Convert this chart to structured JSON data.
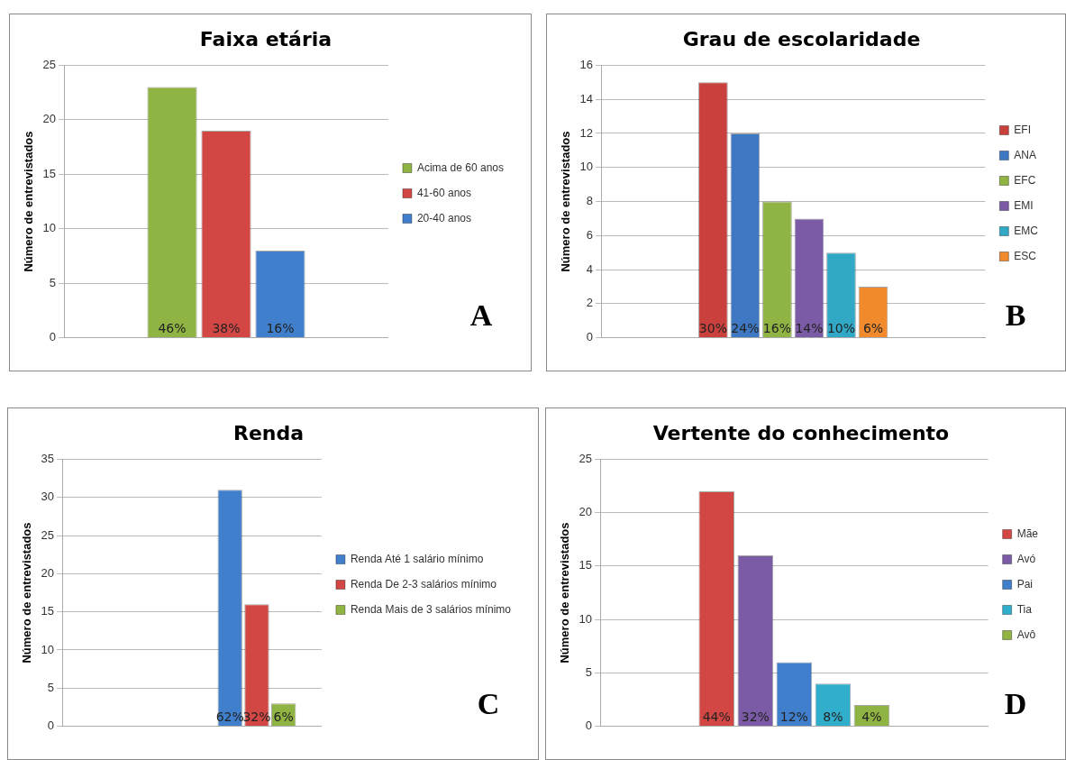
{
  "chart_data": [
    {
      "type": "bar",
      "title": "Faixa etária",
      "ylabel": "Número de entrevistados",
      "categories": [
        null
      ],
      "series": [
        {
          "name": "Acima de 60 anos",
          "color": "#8fb443",
          "values": [
            23
          ]
        },
        {
          "name": "41-60 anos",
          "color": "#d24744",
          "values": [
            19
          ]
        },
        {
          "name": "20-40 anos",
          "color": "#3f7fcc",
          "values": [
            8
          ]
        }
      ],
      "ylim": [
        0,
        25
      ],
      "yticks": [
        0,
        5,
        10,
        15,
        20,
        25
      ],
      "grid": "y",
      "legend": "right",
      "annotations": [
        "46%",
        "38%",
        "16%",
        "A"
      ]
    },
    {
      "type": "bar",
      "title": "Grau de escolaridade",
      "ylabel": "Número de entrevistados",
      "categories": [
        null
      ],
      "series": [
        {
          "name": "EFI",
          "color": "#c9403d",
          "values": [
            15
          ]
        },
        {
          "name": "ANA",
          "color": "#3f78c2",
          "values": [
            12
          ]
        },
        {
          "name": "EFC",
          "color": "#8fb443",
          "values": [
            8
          ]
        },
        {
          "name": "EMI",
          "color": "#7b5aa6",
          "values": [
            7
          ]
        },
        {
          "name": "EMC",
          "color": "#31a9c6",
          "values": [
            5
          ]
        },
        {
          "name": "ESC",
          "color": "#f08a2c",
          "values": [
            3
          ]
        }
      ],
      "ylim": [
        0,
        16
      ],
      "yticks": [
        0,
        2,
        4,
        6,
        8,
        10,
        12,
        14,
        16
      ],
      "grid": "y",
      "legend": "right",
      "annotations": [
        "30%",
        "24%",
        "16%",
        "14%",
        "10%",
        "6%",
        "B"
      ]
    },
    {
      "type": "bar",
      "title": "Renda",
      "ylabel": "Número de entrevistados",
      "categories": [
        null,
        null
      ],
      "series": [
        {
          "name": "Renda Até 1 salário mínimo",
          "color": "#3f7fcc",
          "values": [
            null,
            31
          ]
        },
        {
          "name": "Renda De 2-3 salários mínimo",
          "color": "#d24744",
          "values": [
            null,
            16
          ]
        },
        {
          "name": "Renda Mais de 3 salários mínimo",
          "color": "#8fb443",
          "values": [
            null,
            3
          ]
        }
      ],
      "ylim": [
        0,
        35
      ],
      "yticks": [
        0,
        5,
        10,
        15,
        20,
        25,
        30,
        35
      ],
      "grid": "y",
      "legend": "right",
      "annotations": [
        "62%",
        "32%",
        "6%",
        "C"
      ]
    },
    {
      "type": "bar",
      "title": "Vertente do conhecimento",
      "ylabel": "Número de entrevistados",
      "categories": [
        null
      ],
      "series": [
        {
          "name": "Mãe",
          "color": "#d24744",
          "values": [
            22
          ]
        },
        {
          "name": "Avó",
          "color": "#7b5aa6",
          "values": [
            16
          ]
        },
        {
          "name": "Pai",
          "color": "#3f7fcc",
          "values": [
            6
          ]
        },
        {
          "name": "Tia",
          "color": "#31aecb",
          "values": [
            4
          ]
        },
        {
          "name": "Avô",
          "color": "#8fb443",
          "values": [
            2
          ]
        }
      ],
      "ylim": [
        0,
        25
      ],
      "yticks": [
        0,
        5,
        10,
        15,
        20,
        25
      ],
      "grid": "y",
      "legend": "right",
      "annotations": [
        "44%",
        "32%",
        "12%",
        "8%",
        "4%",
        "D"
      ]
    }
  ]
}
